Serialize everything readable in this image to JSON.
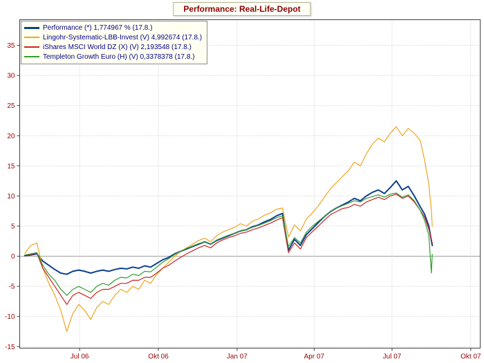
{
  "title": "Performance: Real-Life-Depot",
  "colors": {
    "title_text": "#8b0000",
    "axis_labels": "#990000",
    "legend_text": "#00008b",
    "grid": "#c6c6c6",
    "zero_line": "#999999",
    "plot_border": "#404040",
    "tick_mark": "#404040",
    "legend_bg": "#fffff2",
    "performance_blue": "#0d3f8c",
    "lingohr_orange": "#eea520",
    "ishares_red": "#cc2222",
    "templeton_green": "#2f9e2f"
  },
  "chart_data": {
    "type": "line",
    "title": "Performance: Real-Life-Depot",
    "xlabel": "",
    "ylabel": "",
    "grid": true,
    "legend_position": "top-left",
    "ylim": [
      -15,
      35
    ],
    "value_window": [
      -15.25,
      39.25
    ],
    "y_ticks": [
      -15,
      -10,
      -5,
      0,
      5,
      10,
      15,
      20,
      25,
      30,
      35
    ],
    "xlim": [
      "2006-04-22",
      "2007-10-12"
    ],
    "x_ticks": [
      {
        "date": "2006-07-01",
        "label": "Jul 06"
      },
      {
        "date": "2006-10-01",
        "label": "Okt 06"
      },
      {
        "date": "2007-01-01",
        "label": "Jan 07"
      },
      {
        "date": "2007-04-01",
        "label": "Apr 07"
      },
      {
        "date": "2007-07-01",
        "label": "Jul 07"
      },
      {
        "date": "2007-10-01",
        "label": "Okt 07"
      }
    ],
    "x": [
      "2006-04-28",
      "2006-05-05",
      "2006-05-12",
      "2006-05-19",
      "2006-05-26",
      "2006-06-02",
      "2006-06-09",
      "2006-06-16",
      "2006-06-23",
      "2006-06-30",
      "2006-07-07",
      "2006-07-14",
      "2006-07-21",
      "2006-07-28",
      "2006-08-04",
      "2006-08-11",
      "2006-08-18",
      "2006-08-25",
      "2006-09-01",
      "2006-09-08",
      "2006-09-15",
      "2006-09-22",
      "2006-09-29",
      "2006-10-06",
      "2006-10-13",
      "2006-10-20",
      "2006-10-27",
      "2006-11-03",
      "2006-11-10",
      "2006-11-17",
      "2006-11-24",
      "2006-12-01",
      "2006-12-08",
      "2006-12-15",
      "2006-12-22",
      "2006-12-29",
      "2007-01-05",
      "2007-01-12",
      "2007-01-19",
      "2007-01-26",
      "2007-02-02",
      "2007-02-09",
      "2007-02-16",
      "2007-02-23",
      "2007-03-02",
      "2007-03-09",
      "2007-03-16",
      "2007-03-23",
      "2007-03-30",
      "2007-04-06",
      "2007-04-13",
      "2007-04-20",
      "2007-04-27",
      "2007-05-04",
      "2007-05-11",
      "2007-05-18",
      "2007-05-25",
      "2007-06-01",
      "2007-06-08",
      "2007-06-15",
      "2007-06-22",
      "2007-06-29",
      "2007-07-06",
      "2007-07-13",
      "2007-07-20",
      "2007-07-27",
      "2007-08-03",
      "2007-08-08",
      "2007-08-13",
      "2007-08-16",
      "2007-08-17"
    ],
    "series": [
      {
        "name": "Performance",
        "legend_label": "Performance (*) 1,774967 % (17.8.)",
        "last_value": 1.774967,
        "last_value_date": "17.8.",
        "color": "#0d3f8c",
        "line_width": 2,
        "values": [
          0.1,
          0.2,
          0.4,
          -0.8,
          -1.5,
          -2.2,
          -2.8,
          -3.0,
          -2.5,
          -2.3,
          -2.5,
          -2.8,
          -2.5,
          -2.3,
          -2.5,
          -2.2,
          -2.0,
          -2.1,
          -1.8,
          -2.0,
          -1.6,
          -1.8,
          -1.2,
          -0.6,
          -0.2,
          0.4,
          0.8,
          1.2,
          1.6,
          2.0,
          2.4,
          2.0,
          2.6,
          3.0,
          3.4,
          3.8,
          4.2,
          4.4,
          4.9,
          5.2,
          5.7,
          6.1,
          6.7,
          7.1,
          1.0,
          2.8,
          1.8,
          3.6,
          4.6,
          5.6,
          6.6,
          7.4,
          8.0,
          8.5,
          9.0,
          9.6,
          9.2,
          10.0,
          10.6,
          11.0,
          10.4,
          11.4,
          12.5,
          11.0,
          11.6,
          10.0,
          8.2,
          7.0,
          5.0,
          2.6,
          1.774967
        ]
      },
      {
        "name": "Lingohr-Systematic-LBB-Invest",
        "legend_label": "Lingohr-Systematic-LBB-Invest (V) 4,992674 (17.8.)",
        "last_value": 4.992674,
        "last_value_date": "17.8.",
        "color": "#eea520",
        "line_width": 1.2,
        "values": [
          0.5,
          1.8,
          2.2,
          -2.0,
          -4.5,
          -6.5,
          -9.0,
          -12.5,
          -9.5,
          -8.0,
          -9.0,
          -10.5,
          -8.5,
          -7.5,
          -8.0,
          -6.5,
          -5.5,
          -6.0,
          -5.0,
          -5.5,
          -4.0,
          -4.5,
          -3.0,
          -2.0,
          -1.0,
          0.0,
          0.8,
          1.4,
          2.0,
          2.6,
          3.0,
          2.4,
          3.4,
          4.0,
          4.4,
          4.8,
          5.4,
          5.0,
          5.8,
          6.2,
          6.8,
          7.2,
          7.8,
          8.0,
          3.2,
          5.2,
          4.2,
          6.2,
          7.2,
          8.4,
          9.8,
          11.2,
          12.2,
          13.2,
          14.2,
          15.6,
          15.0,
          17.0,
          18.6,
          19.6,
          19.0,
          20.4,
          21.5,
          20.0,
          21.2,
          20.4,
          19.2,
          16.0,
          12.0,
          7.5,
          4.992674
        ]
      },
      {
        "name": "iShares MSCI World DZ",
        "legend_label": "iShares MSCI World DZ (X) (V) 2,193548 (17.8.)",
        "last_value": 2.193548,
        "last_value_date": "17.8.",
        "color": "#cc2222",
        "line_width": 1.2,
        "values": [
          0.2,
          0.3,
          0.5,
          -2.0,
          -3.5,
          -5.0,
          -6.5,
          -8.0,
          -6.5,
          -6.0,
          -6.5,
          -7.0,
          -6.0,
          -5.5,
          -5.5,
          -5.0,
          -4.5,
          -4.5,
          -4.0,
          -4.0,
          -3.5,
          -3.5,
          -2.8,
          -2.0,
          -1.5,
          -0.8,
          -0.2,
          0.4,
          0.9,
          1.4,
          1.8,
          1.4,
          2.2,
          2.7,
          3.1,
          3.4,
          3.8,
          4.0,
          4.4,
          4.7,
          5.1,
          5.5,
          6.0,
          6.4,
          0.6,
          2.2,
          1.2,
          3.1,
          4.1,
          5.0,
          6.0,
          6.9,
          7.4,
          7.9,
          8.1,
          8.6,
          8.3,
          9.0,
          9.4,
          9.8,
          9.4,
          10.0,
          10.3,
          9.6,
          10.0,
          9.0,
          7.6,
          6.5,
          4.5,
          2.8,
          2.193548
        ]
      },
      {
        "name": "Templeton Growth Euro",
        "legend_label": "Templeton Growth Euro (H) (V) 0,3378378 (17.8.)",
        "last_value": 0.3378378,
        "last_value_date": "17.8.",
        "color": "#2f9e2f",
        "line_width": 1.2,
        "values": [
          0.2,
          0.4,
          0.6,
          -1.5,
          -3.0,
          -4.0,
          -5.5,
          -6.5,
          -5.5,
          -5.0,
          -5.5,
          -6.0,
          -5.0,
          -4.5,
          -4.8,
          -4.0,
          -3.5,
          -3.6,
          -3.0,
          -3.2,
          -2.5,
          -2.6,
          -1.8,
          -1.0,
          -0.4,
          0.3,
          0.8,
          1.3,
          1.7,
          2.1,
          2.4,
          2.0,
          2.7,
          3.1,
          3.5,
          3.8,
          4.2,
          4.4,
          4.8,
          5.1,
          5.5,
          5.9,
          6.4,
          6.7,
          1.6,
          3.1,
          2.2,
          4.0,
          5.0,
          5.8,
          6.6,
          7.4,
          8.0,
          8.4,
          8.8,
          9.2,
          9.0,
          9.6,
          9.9,
          10.2,
          9.8,
          10.3,
          10.5,
          9.8,
          10.2,
          9.2,
          7.6,
          6.0,
          3.5,
          -2.8,
          0.3378378
        ]
      }
    ]
  }
}
